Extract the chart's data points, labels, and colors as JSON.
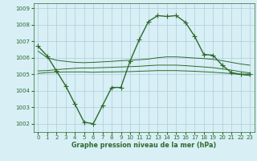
{
  "hours": [
    0,
    1,
    2,
    3,
    4,
    5,
    6,
    7,
    8,
    9,
    10,
    11,
    12,
    13,
    14,
    15,
    16,
    17,
    18,
    19,
    20,
    21,
    22,
    23
  ],
  "main_line": [
    1006.7,
    1006.1,
    1005.2,
    1004.3,
    1003.2,
    1002.1,
    1002.0,
    1003.1,
    1004.2,
    1004.2,
    1005.8,
    1007.1,
    1008.2,
    1008.55,
    1008.5,
    1008.55,
    1008.15,
    1007.3,
    1006.2,
    1006.15,
    1005.55,
    1005.1,
    1005.0,
    1005.0
  ],
  "upper_line": [
    1006.4,
    1006.0,
    1005.85,
    1005.78,
    1005.72,
    1005.7,
    1005.72,
    1005.75,
    1005.78,
    1005.82,
    1005.85,
    1005.88,
    1005.92,
    1006.0,
    1006.05,
    1006.05,
    1006.02,
    1005.98,
    1005.95,
    1005.9,
    1005.82,
    1005.72,
    1005.62,
    1005.55
  ],
  "mid_line": [
    1005.2,
    1005.22,
    1005.28,
    1005.32,
    1005.36,
    1005.38,
    1005.38,
    1005.4,
    1005.42,
    1005.44,
    1005.46,
    1005.48,
    1005.52,
    1005.55,
    1005.55,
    1005.55,
    1005.52,
    1005.48,
    1005.44,
    1005.4,
    1005.32,
    1005.25,
    1005.15,
    1005.08
  ],
  "lower_line": [
    1005.05,
    1005.1,
    1005.12,
    1005.14,
    1005.14,
    1005.14,
    1005.12,
    1005.14,
    1005.14,
    1005.15,
    1005.16,
    1005.18,
    1005.2,
    1005.22,
    1005.22,
    1005.22,
    1005.2,
    1005.18,
    1005.15,
    1005.12,
    1005.08,
    1005.04,
    1004.98,
    1004.92
  ],
  "line_color": "#2d6a2d",
  "bg_color": "#d8eff5",
  "grid_color": "#aacfda",
  "text_color": "#2d6a2d",
  "xlabel": "Graphe pression niveau de la mer (hPa)",
  "ylim": [
    1001.5,
    1009.3
  ],
  "yticks": [
    1002,
    1003,
    1004,
    1005,
    1006,
    1007,
    1008,
    1009
  ],
  "xticks": [
    0,
    1,
    2,
    3,
    4,
    5,
    6,
    7,
    8,
    9,
    10,
    11,
    12,
    13,
    14,
    15,
    16,
    17,
    18,
    19,
    20,
    21,
    22,
    23
  ],
  "markersize": 2.5,
  "linewidth": 1.0
}
